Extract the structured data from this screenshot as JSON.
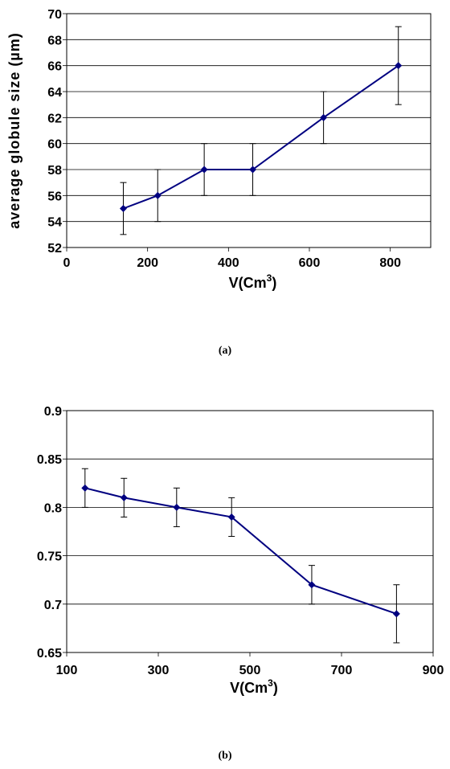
{
  "chart_data": [
    {
      "type": "line",
      "caption": "(a)",
      "xlabel_main": "V(Cm",
      "xlabel_sup": "3",
      "xlabel_end": ")",
      "ylabel": "average globule size (µm)",
      "xlim": [
        0,
        900
      ],
      "ylim": [
        52,
        70
      ],
      "xticks": [
        0,
        200,
        400,
        600,
        800
      ],
      "yticks": [
        52,
        54,
        56,
        58,
        60,
        62,
        64,
        66,
        68,
        70
      ],
      "grid": "horizontal",
      "series": [
        {
          "x": [
            140,
            225,
            340,
            460,
            635,
            820
          ],
          "y": [
            55,
            56,
            58,
            58,
            62,
            66
          ],
          "err_low": [
            53,
            54,
            56,
            56,
            60,
            63
          ],
          "err_high": [
            57,
            58,
            60,
            60,
            64,
            69
          ],
          "color": "#000080"
        }
      ]
    },
    {
      "type": "line",
      "caption": "(b)",
      "xlabel_main": "V(Cm",
      "xlabel_sup": "3",
      "xlabel_end": ")",
      "ylabel": "",
      "xlim": [
        100,
        900
      ],
      "ylim": [
        0.65,
        0.9
      ],
      "xticks": [
        100,
        300,
        500,
        700,
        900
      ],
      "yticks": [
        0.65,
        0.7,
        0.75,
        0.8,
        0.85,
        0.9
      ],
      "grid": "horizontal",
      "series": [
        {
          "x": [
            140,
            225,
            340,
            460,
            635,
            820
          ],
          "y": [
            0.82,
            0.81,
            0.8,
            0.79,
            0.72,
            0.69
          ],
          "err_low": [
            0.8,
            0.79,
            0.78,
            0.77,
            0.7,
            0.66
          ],
          "err_high": [
            0.84,
            0.83,
            0.82,
            0.81,
            0.74,
            0.72
          ],
          "color": "#000080"
        }
      ]
    }
  ]
}
